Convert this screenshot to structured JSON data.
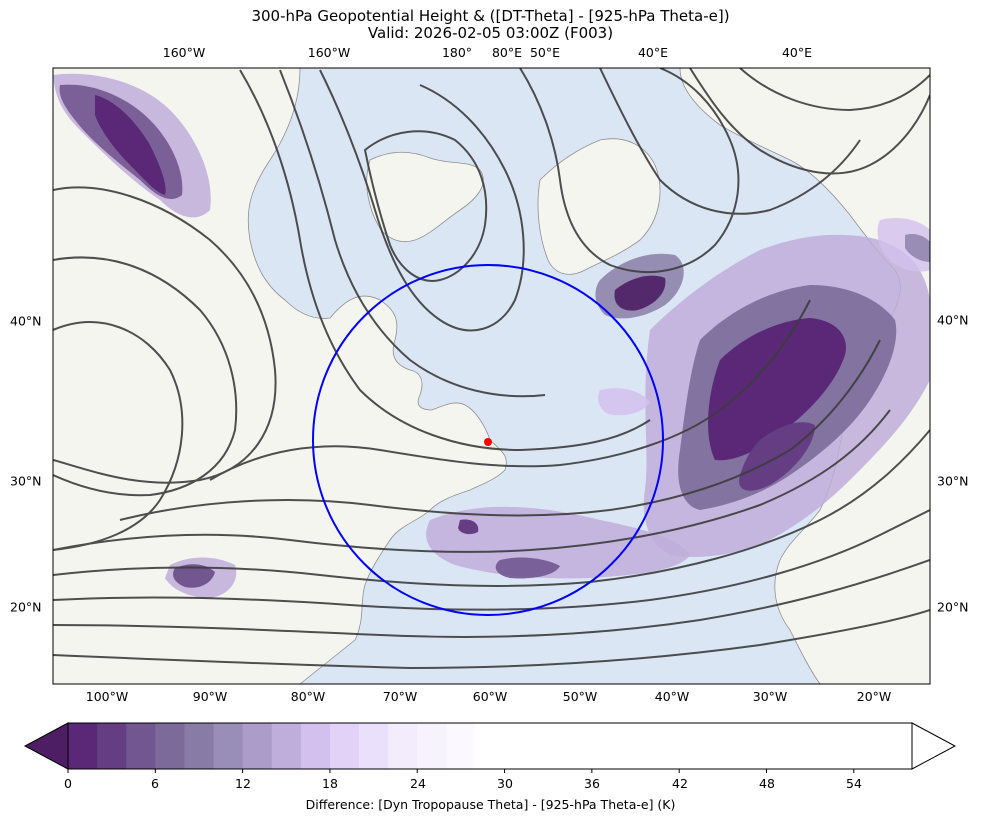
{
  "title": {
    "line1": "300-hPa Geopotential Height & ([DT-Theta] - [925-hPa Theta-e])",
    "line2": "Valid: 2026-02-05 03:00Z (F003)"
  },
  "map": {
    "top_lon_labels": [
      "160°W",
      "160°W",
      "180°",
      "80°E",
      "50°E",
      "40°E",
      "40°E"
    ],
    "bottom_lon_labels": [
      "100°W",
      "90°W",
      "80°W",
      "70°W",
      "60°W",
      "50°W",
      "40°W",
      "30°W",
      "20°W"
    ],
    "left_lat_labels": [
      "40°N",
      "30°N",
      "20°N"
    ],
    "right_lat_labels": [
      "40°N",
      "30°N",
      "20°N"
    ],
    "colors": {
      "ocean": "#dbe6f5",
      "land": "#f5f5f0",
      "coastline": "#8f8f8f",
      "height_contour": "#3c3c3c",
      "circle": "#0000ff",
      "marker": "#ff0000",
      "fill_darkest": "#4d1e63"
    }
  },
  "colorbar": {
    "ticks": [
      "0",
      "6",
      "12",
      "18",
      "24",
      "30",
      "36",
      "42",
      "48",
      "54"
    ],
    "label": "Difference: [Dyn Tropopause Theta] - [925-hPa Theta-e] (K)",
    "levels": [
      0,
      2,
      4,
      6,
      8,
      10,
      12,
      14,
      16,
      18,
      20,
      22,
      24,
      26,
      28
    ],
    "colors": [
      "#5a2877",
      "#653d82",
      "#725690",
      "#7c6b9a",
      "#887ca6",
      "#998eb8",
      "#ab9cca",
      "#bfaddb",
      "#d3c0ee",
      "#e2d2f8",
      "#ebe0fb",
      "#f2ecfd",
      "#f7f3fe",
      "#fbf9ff",
      "#ffffff"
    ],
    "under_color": "#4d1e63",
    "over_color": "#ffffff"
  }
}
